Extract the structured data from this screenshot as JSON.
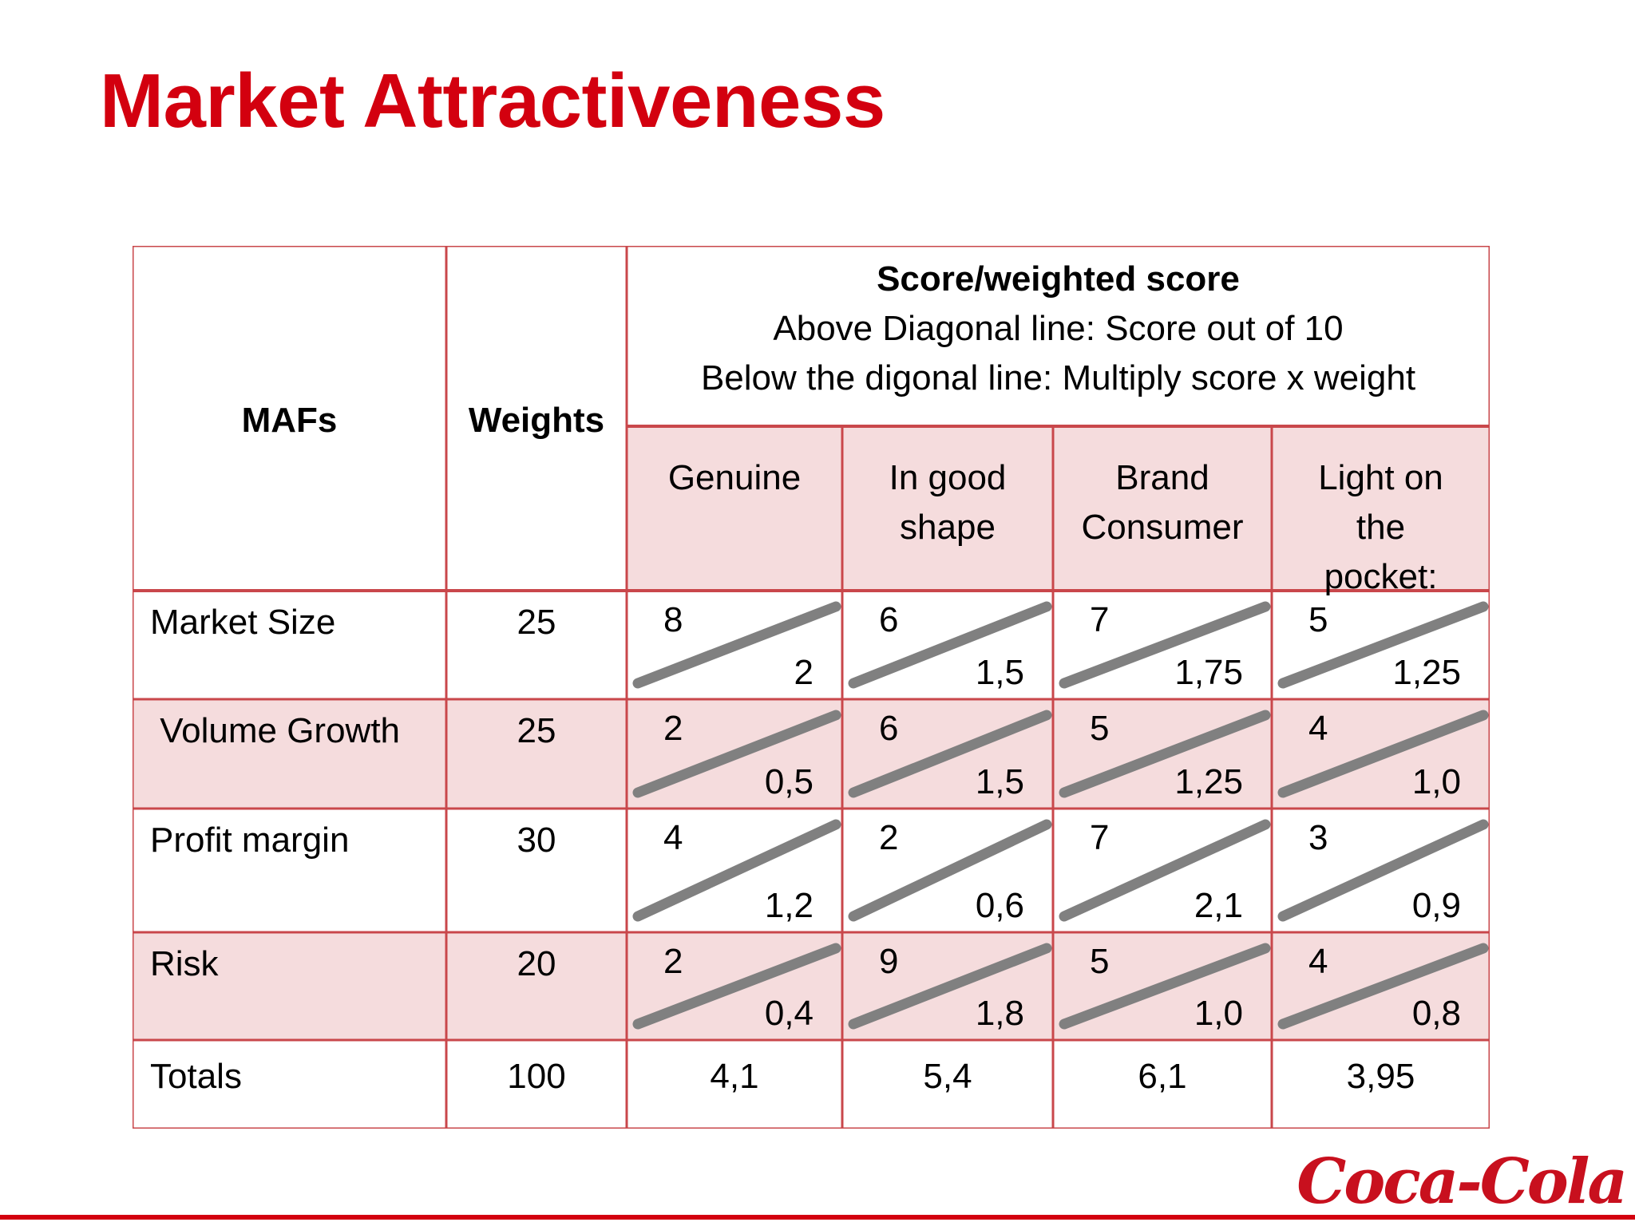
{
  "title": "Market Attractiveness",
  "colors": {
    "accent": "#d3000f",
    "border": "#c9474b",
    "shade": "#f5dcdd",
    "diagonal": "#808080"
  },
  "table": {
    "col_mafs": "MAFs",
    "col_weights": "Weights",
    "score_header": {
      "title": "Score/weighted score",
      "line1": "Above Diagonal  line: Score out of 10",
      "line2": "Below the digonal line: Multiply score x weight"
    },
    "segments": [
      {
        "lines": [
          "Genuine"
        ]
      },
      {
        "lines": [
          "In good",
          "shape"
        ]
      },
      {
        "lines": [
          "Brand",
          "Consumer"
        ]
      },
      {
        "lines": [
          "Light on",
          "the",
          "pocket:"
        ]
      }
    ],
    "rows": [
      {
        "label": "Market Size",
        "weight": "25",
        "shaded": false,
        "cells": [
          {
            "score": "8",
            "weighted": "2"
          },
          {
            "score": "6",
            "weighted": "1,5"
          },
          {
            "score": "7",
            "weighted": "1,75"
          },
          {
            "score": "5",
            "weighted": "1,25"
          }
        ]
      },
      {
        "label": " Volume Growth",
        "weight": "25",
        "shaded": true,
        "cells": [
          {
            "score": "2",
            "weighted": "0,5"
          },
          {
            "score": "6",
            "weighted": "1,5"
          },
          {
            "score": "5",
            "weighted": "1,25"
          },
          {
            "score": "4",
            "weighted": "1,0"
          }
        ]
      },
      {
        "label": "Profit margin",
        "weight": "30",
        "shaded": false,
        "cells": [
          {
            "score": "4",
            "weighted": "1,2"
          },
          {
            "score": "2",
            "weighted": "0,6"
          },
          {
            "score": "7",
            "weighted": "2,1"
          },
          {
            "score": "3",
            "weighted": "0,9"
          }
        ]
      },
      {
        "label": "Risk",
        "weight": "20",
        "shaded": true,
        "cells": [
          {
            "score": "2",
            "weighted": "0,4"
          },
          {
            "score": "9",
            "weighted": "1,8"
          },
          {
            "score": "5",
            "weighted": "1,0"
          },
          {
            "score": "4",
            "weighted": "0,8"
          }
        ]
      }
    ],
    "totals": {
      "label": "Totals",
      "weight": "100",
      "values": [
        "4,1",
        "5,4",
        "6,1",
        "3,95"
      ]
    }
  },
  "logo": {
    "icon": "coca-cola-logo",
    "text": "Coca-Cola"
  }
}
